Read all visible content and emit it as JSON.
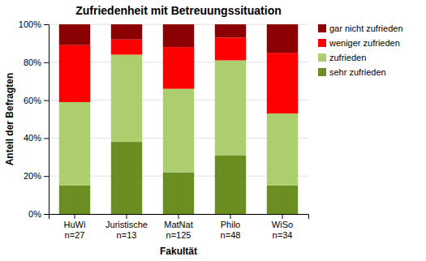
{
  "chart_data": {
    "type": "bar",
    "stacked": true,
    "title": "Zufriedenheit mit Betreuungssituation",
    "xlabel": "Fakultät",
    "ylabel": "Anteil der Befragten",
    "categories": [
      "HuWi\nn=27",
      "Juristische\nn=13",
      "MatNat\nn=125",
      "Philo\nn=48",
      "WiSo\nn=34"
    ],
    "series": [
      {
        "name": "sehr zufrieden",
        "color": "#6B8E23",
        "values": [
          15,
          38,
          22,
          31,
          15
        ]
      },
      {
        "name": "zufrieden",
        "color": "#ADCE6E",
        "values": [
          44,
          46,
          44,
          50,
          38
        ]
      },
      {
        "name": "weniger zufrieden",
        "color": "#FF0000",
        "values": [
          30,
          8,
          22,
          12,
          32
        ]
      },
      {
        "name": "gar nicht zufrieden",
        "color": "#8B0000",
        "values": [
          11,
          8,
          12,
          7,
          15
        ]
      }
    ],
    "ylim": [
      0,
      100
    ],
    "yticks": [
      {
        "value": 0,
        "label": "0%"
      },
      {
        "value": 20,
        "label": "20%"
      },
      {
        "value": 40,
        "label": "40%"
      },
      {
        "value": 60,
        "label": "60%"
      },
      {
        "value": 80,
        "label": "80%"
      },
      {
        "value": 100,
        "label": "100%"
      }
    ],
    "grid": true,
    "legend": "right"
  }
}
